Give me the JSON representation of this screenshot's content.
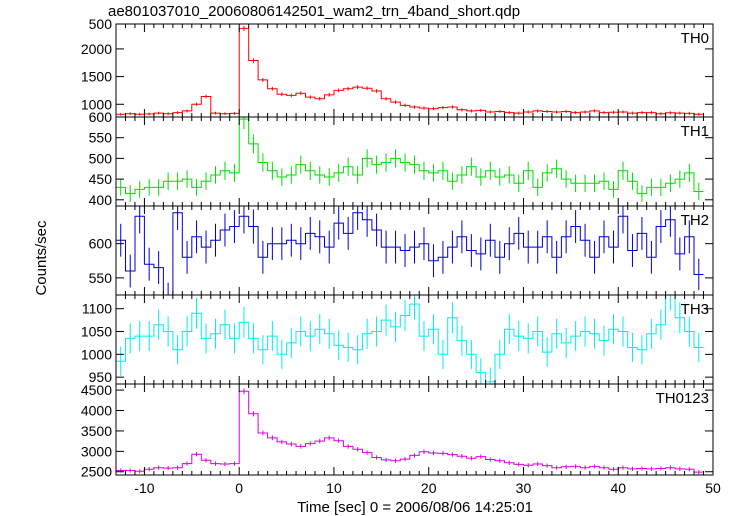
{
  "chart_data": {
    "type": "line",
    "title": "ae801037010_20060806142501_wam2_trn_4band_short.qdp",
    "xlabel": "Time [sec] 0 = 2006/08/06 14:25:01",
    "ylabel": "Counts/sec",
    "xlim": [
      -13,
      50
    ],
    "x_ticks": [
      -10,
      0,
      10,
      20,
      30,
      40,
      50
    ],
    "bin_width": 1,
    "x": [
      -12.5,
      -11.5,
      -10.5,
      -9.5,
      -8.5,
      -7.5,
      -6.5,
      -5.5,
      -4.5,
      -3.5,
      -2.5,
      -1.5,
      -0.5,
      0.5,
      1.5,
      2.5,
      3.5,
      4.5,
      5.5,
      6.5,
      7.5,
      8.5,
      9.5,
      10.5,
      11.5,
      12.5,
      13.5,
      14.5,
      15.5,
      16.5,
      17.5,
      18.5,
      19.5,
      20.5,
      21.5,
      22.5,
      23.5,
      24.5,
      25.5,
      26.5,
      27.5,
      28.5,
      29.5,
      30.5,
      31.5,
      32.5,
      33.5,
      34.5,
      35.5,
      36.5,
      37.5,
      38.5,
      39.5,
      40.5,
      41.5,
      42.5,
      43.5,
      44.5,
      45.5,
      46.5,
      47.5,
      48.5
    ],
    "panels": [
      {
        "name": "TH0",
        "color": "#ff0000",
        "ylim": [
          770,
          2450
        ],
        "ticks": [
          1000,
          1500,
          2000
        ],
        "top_tick_label": "500",
        "values": [
          820,
          830,
          820,
          825,
          840,
          830,
          850,
          880,
          1000,
          1140,
          840,
          830,
          835,
          2370,
          1790,
          1440,
          1280,
          1180,
          1160,
          1200,
          1130,
          1100,
          1170,
          1250,
          1280,
          1310,
          1290,
          1240,
          1100,
          1040,
          980,
          950,
          930,
          920,
          940,
          950,
          900,
          880,
          890,
          860,
          870,
          850,
          840,
          860,
          880,
          870,
          860,
          870,
          850,
          860,
          880,
          850,
          855,
          860,
          840,
          850,
          850,
          830,
          845,
          840,
          835,
          820
        ],
        "errors": [
          25,
          25,
          25,
          25,
          25,
          25,
          25,
          27,
          30,
          32,
          25,
          25,
          25,
          45,
          40,
          36,
          34,
          33,
          33,
          33,
          32,
          32,
          33,
          34,
          34,
          35,
          34,
          33,
          32,
          31,
          30,
          30,
          29,
          29,
          29,
          30,
          29,
          29,
          29,
          28,
          28,
          28,
          28,
          28,
          29,
          28,
          28,
          28,
          28,
          28,
          29,
          28,
          28,
          28,
          28,
          28,
          28,
          28,
          28,
          28,
          28,
          27
        ]
      },
      {
        "name": "TH1",
        "color": "#00dd00",
        "ylim": [
          385,
          600
        ],
        "ticks": [
          400,
          450,
          500,
          550
        ],
        "top_tick_label": "600",
        "values": [
          430,
          415,
          425,
          430,
          430,
          445,
          445,
          450,
          430,
          445,
          460,
          470,
          465,
          595,
          535,
          490,
          470,
          455,
          460,
          485,
          470,
          460,
          455,
          465,
          480,
          460,
          500,
          485,
          490,
          500,
          490,
          485,
          470,
          465,
          470,
          445,
          460,
          480,
          455,
          470,
          455,
          460,
          440,
          470,
          430,
          465,
          475,
          450,
          440,
          440,
          440,
          445,
          425,
          470,
          445,
          415,
          430,
          430,
          440,
          450,
          465,
          420
        ],
        "errors": [
          20,
          20,
          20,
          20,
          20,
          21,
          21,
          21,
          20,
          21,
          21,
          22,
          22,
          24,
          23,
          22,
          22,
          21,
          21,
          22,
          22,
          21,
          21,
          22,
          22,
          21,
          22,
          22,
          22,
          22,
          22,
          22,
          22,
          21,
          22,
          21,
          21,
          22,
          21,
          22,
          21,
          21,
          21,
          22,
          21,
          21,
          22,
          21,
          21,
          21,
          21,
          21,
          20,
          22,
          21,
          20,
          21,
          21,
          21,
          21,
          22,
          21
        ]
      },
      {
        "name": "TH2",
        "color": "#0000cc",
        "ylim": [
          525,
          655
        ],
        "ticks": [
          550,
          600
        ],
        "top_tick_label": "",
        "values": [
          605,
          560,
          640,
          570,
          565,
          520,
          645,
          580,
          610,
          595,
          605,
          620,
          625,
          640,
          625,
          580,
          600,
          600,
          605,
          600,
          615,
          610,
          595,
          630,
          615,
          645,
          635,
          620,
          595,
          595,
          590,
          595,
          600,
          575,
          580,
          595,
          610,
          590,
          585,
          605,
          580,
          600,
          615,
          595,
          595,
          610,
          580,
          610,
          625,
          605,
          580,
          610,
          595,
          640,
          590,
          615,
          580,
          625,
          635,
          585,
          610,
          555
        ],
        "errors": [
          24,
          24,
          25,
          24,
          24,
          23,
          25,
          24,
          24,
          24,
          24,
          24,
          24,
          25,
          25,
          24,
          24,
          24,
          24,
          24,
          24,
          24,
          24,
          24,
          24,
          25,
          25,
          24,
          24,
          24,
          24,
          24,
          24,
          24,
          24,
          24,
          24,
          24,
          24,
          24,
          24,
          24,
          24,
          24,
          24,
          24,
          24,
          24,
          24,
          24,
          24,
          24,
          24,
          25,
          24,
          24,
          24,
          24,
          25,
          24,
          24,
          23
        ]
      },
      {
        "name": "TH3",
        "color": "#00eeee",
        "ylim": [
          935,
          1130
        ],
        "ticks": [
          950,
          1000,
          1050,
          1100
        ],
        "top_tick_label": "",
        "values": [
          985,
          1035,
          1040,
          1040,
          1065,
          1050,
          1010,
          1050,
          1090,
          1035,
          1045,
          1065,
          1035,
          1070,
          1035,
          1010,
          1040,
          1000,
          1025,
          1050,
          1040,
          1055,
          1045,
          1020,
          1015,
          1010,
          1045,
          1050,
          1075,
          1060,
          1085,
          1110,
          1040,
          1055,
          1000,
          1080,
          1030,
          1000,
          960,
          940,
          1000,
          1055,
          1040,
          1035,
          1050,
          1005,
          1045,
          1025,
          1040,
          1050,
          1045,
          1030,
          1055,
          1050,
          1015,
          1010,
          1045,
          1065,
          1130,
          1080,
          1050,
          1015
        ],
        "errors": [
          32,
          33,
          33,
          33,
          33,
          33,
          32,
          33,
          34,
          33,
          33,
          33,
          33,
          34,
          33,
          32,
          33,
          32,
          33,
          33,
          33,
          33,
          33,
          33,
          32,
          32,
          33,
          33,
          34,
          33,
          34,
          34,
          33,
          33,
          32,
          34,
          33,
          32,
          31,
          31,
          32,
          33,
          33,
          33,
          33,
          32,
          33,
          33,
          33,
          33,
          33,
          33,
          33,
          33,
          32,
          32,
          33,
          33,
          34,
          34,
          33,
          32
        ]
      },
      {
        "name": "TH0123",
        "color": "#dd00dd",
        "ylim": [
          2420,
          4650
        ],
        "ticks": [
          2500,
          3000,
          3500,
          4000,
          4500
        ],
        "top_tick_label": "",
        "values": [
          2530,
          2530,
          2510,
          2560,
          2600,
          2590,
          2600,
          2700,
          2930,
          2780,
          2700,
          2690,
          2700,
          4470,
          3920,
          3450,
          3330,
          3230,
          3180,
          3120,
          3190,
          3250,
          3330,
          3260,
          3120,
          3050,
          2970,
          2850,
          2790,
          2770,
          2810,
          2900,
          2990,
          2960,
          2950,
          2920,
          2880,
          2830,
          2870,
          2800,
          2770,
          2720,
          2680,
          2660,
          2690,
          2650,
          2600,
          2620,
          2630,
          2600,
          2630,
          2600,
          2560,
          2600,
          2570,
          2580,
          2570,
          2580,
          2600,
          2570,
          2560,
          2490
        ],
        "errors": [
          50,
          50,
          50,
          51,
          51,
          51,
          51,
          52,
          54,
          53,
          52,
          52,
          52,
          67,
          63,
          59,
          58,
          57,
          56,
          56,
          56,
          57,
          58,
          57,
          56,
          55,
          54,
          53,
          53,
          53,
          53,
          54,
          55,
          54,
          54,
          54,
          54,
          53,
          54,
          53,
          53,
          52,
          52,
          52,
          52,
          52,
          51,
          51,
          51,
          51,
          51,
          51,
          51,
          51,
          51,
          51,
          51,
          51,
          51,
          51,
          51,
          50
        ]
      }
    ]
  }
}
